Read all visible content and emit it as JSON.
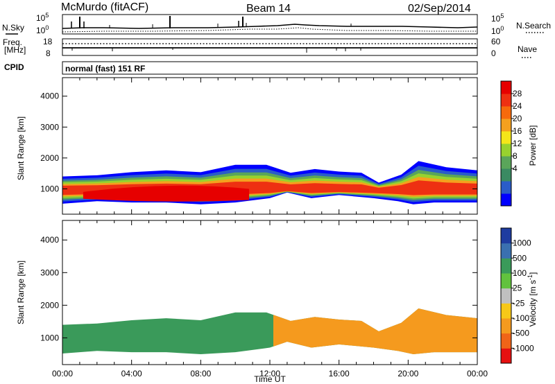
{
  "header": {
    "station": "McMurdo (fitACF)",
    "beam": "Beam 14",
    "date": "02/Sep/2014"
  },
  "status_panels": {
    "nsky_label": "N.Sky",
    "nsky_ticks": [
      "10^5",
      "10^0"
    ],
    "nsearch_label": "N.Search",
    "nsearch_ticks": [
      "10^5",
      "10^0"
    ],
    "freq_label": [
      "Freq.",
      "[MHz]"
    ],
    "freq_ticks": [
      "18",
      "8"
    ],
    "nave_label": "Nave",
    "nave_ticks": [
      "60",
      "0"
    ],
    "cpid_label": "CPID",
    "cpid_value": "normal (fast) 151 RF"
  },
  "chart_data": [
    {
      "type": "heatmap",
      "name": "power-panel",
      "ylabel": "Slant Range [km]",
      "xlabel": "",
      "x_range_hours": [
        0,
        24
      ],
      "y_range_km": [
        180,
        4600
      ],
      "y_ticks": [
        "1000",
        "2000",
        "3000",
        "4000"
      ],
      "colorbar": {
        "title": "Power [dB]",
        "ticks": [
          "28",
          "24",
          "20",
          "16",
          "12",
          "8",
          "4"
        ],
        "colors": [
          "#0000ff",
          "#2a5cc8",
          "#3a8a62",
          "#5aa55a",
          "#98d22e",
          "#f5e61a",
          "#f5a01e",
          "#f76a0c",
          "#ee3012",
          "#e60000"
        ]
      },
      "echo_region": {
        "lower_km": [
          [
            0,
            520
          ],
          [
            2,
            600
          ],
          [
            4,
            560
          ],
          [
            6,
            560
          ],
          [
            8,
            500
          ],
          [
            10,
            560
          ],
          [
            12,
            700
          ],
          [
            13,
            880
          ],
          [
            14.4,
            700
          ],
          [
            16,
            800
          ],
          [
            18,
            700
          ],
          [
            19.4,
            600
          ],
          [
            20.3,
            500
          ],
          [
            21.5,
            560
          ],
          [
            24,
            560
          ]
        ],
        "upper_km": [
          [
            0,
            1400
          ],
          [
            2,
            1440
          ],
          [
            4,
            1540
          ],
          [
            6,
            1600
          ],
          [
            8,
            1540
          ],
          [
            10,
            1780
          ],
          [
            11.8,
            1780
          ],
          [
            13.2,
            1520
          ],
          [
            14.6,
            1640
          ],
          [
            16,
            1560
          ],
          [
            17.3,
            1520
          ],
          [
            18.3,
            1200
          ],
          [
            19.6,
            1460
          ],
          [
            20.6,
            1900
          ],
          [
            22.2,
            1700
          ],
          [
            24,
            1600
          ]
        ]
      }
    },
    {
      "type": "heatmap",
      "name": "velocity-panel",
      "ylabel": "Slant Range [km]",
      "xlabel": "Time UT",
      "x_ticks": [
        "00:00",
        "04:00",
        "08:00",
        "12:00",
        "16:00",
        "20:00",
        "00:00"
      ],
      "x_range_hours": [
        0,
        24
      ],
      "y_range_km": [
        180,
        4600
      ],
      "y_ticks": [
        "1000",
        "2000",
        "3000",
        "4000"
      ],
      "colorbar": {
        "title": "Velocity [m s^-1]",
        "ticks": [
          "1000",
          "500",
          "100",
          "25",
          "-25",
          "-100",
          "-500",
          "-1000"
        ],
        "colors": [
          "#e61010",
          "#f06418",
          "#f59a1e",
          "#f7c818",
          "#c0c0c0",
          "#62c23e",
          "#3a9a5a",
          "#3a70b0",
          "#1e3ca0"
        ]
      }
    }
  ]
}
